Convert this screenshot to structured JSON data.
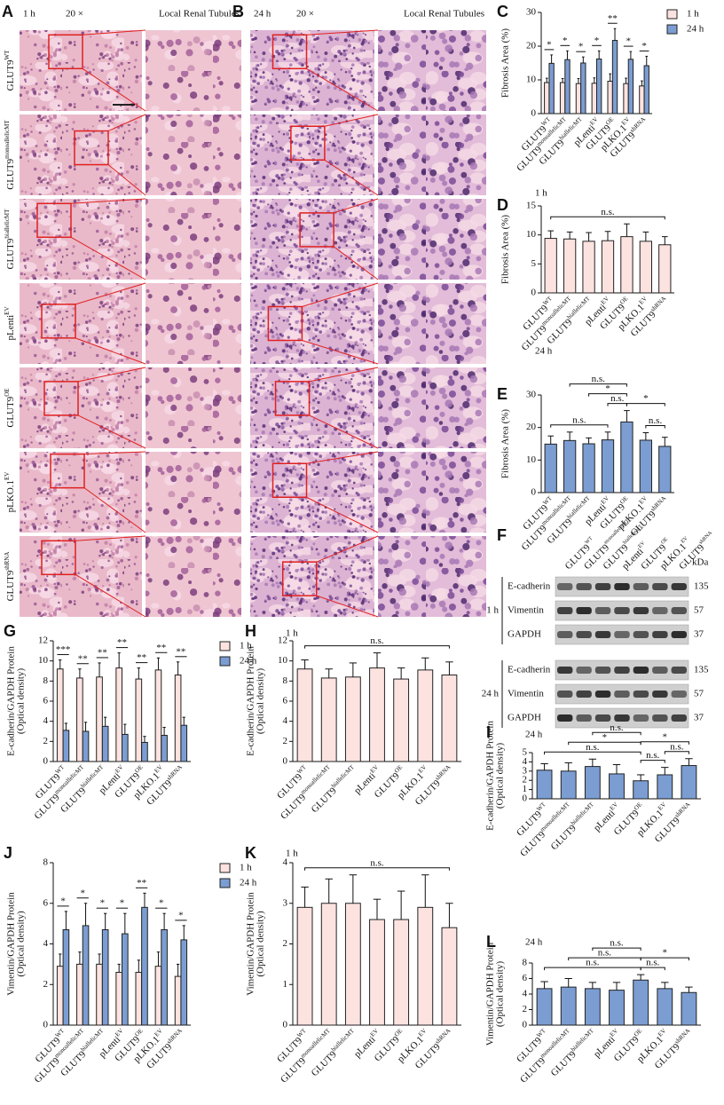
{
  "histology": {
    "panels": [
      {
        "panel": "A",
        "time": "1 h",
        "magnification": "20 ×",
        "zoom_label": "Local Renal Tubules"
      },
      {
        "panel": "B",
        "time": "24 h",
        "magnification": "20 ×",
        "zoom_label": "Local Renal Tubules"
      }
    ],
    "rows": [
      {
        "text": "GLUT9",
        "sup": "WT"
      },
      {
        "text": "GLUT9",
        "sup": "monoallelicMT"
      },
      {
        "text": "GLUT9",
        "sup": "biallelicMT"
      },
      {
        "text": "pLenti",
        "sup": "EV"
      },
      {
        "text": "GLUT9",
        "sup": "OE"
      },
      {
        "text": "pLKO.1",
        "sup": "EV"
      },
      {
        "text": "GLUT9",
        "sup": "shRNA"
      }
    ]
  },
  "western_blot": {
    "panel": "F",
    "lanes": [
      {
        "text": "GLUT9",
        "sup": "WT"
      },
      {
        "text": "GLUT9",
        "sup": "monoallelicMT"
      },
      {
        "text": "GLUT9",
        "sup": "biallelicMT"
      },
      {
        "text": "pLenti",
        "sup": "EV"
      },
      {
        "text": "GLUT9",
        "sup": "OE"
      },
      {
        "text": "pLKO.1",
        "sup": "EV"
      },
      {
        "text": "GLUT9",
        "sup": "shRNA"
      }
    ],
    "unit": "kDa",
    "blocks": [
      {
        "time": "1 h",
        "rows": [
          {
            "protein": "E-cadherin",
            "kda": 135
          },
          {
            "protein": "Vimentin",
            "kda": 57
          },
          {
            "protein": "GAPDH",
            "kda": 37
          }
        ]
      },
      {
        "time": "24 h",
        "rows": [
          {
            "protein": "E-cadherin",
            "kda": 135
          },
          {
            "protein": "Vimentin",
            "kda": 57
          },
          {
            "protein": "GAPDH",
            "kda": 37
          }
        ]
      }
    ]
  },
  "chart_data": [
    {
      "type": "bar",
      "panel": "C",
      "ylabel": [
        "Fibrosis Area (%)"
      ],
      "categories": [
        {
          "text": "GLUT9",
          "sup": "WT"
        },
        {
          "text": "GLUT9",
          "sup": "monoallelicMT"
        },
        {
          "text": "GLUT9",
          "sup": "biallelicMT"
        },
        {
          "text": "pLenti",
          "sup": "EV"
        },
        {
          "text": "GLUT9",
          "sup": "OE"
        },
        {
          "text": "pLKO.1",
          "sup": "EV"
        },
        {
          "text": "GLUT9",
          "sup": "shRNA"
        }
      ],
      "series": [
        {
          "name": "1 h",
          "color": "#fde3e0",
          "values": [
            9.2,
            9.2,
            8.9,
            9.0,
            9.6,
            8.9,
            8.2
          ],
          "errors": [
            1.3,
            1.2,
            1.5,
            1.6,
            2.2,
            1.6,
            1.5
          ]
        },
        {
          "name": "24 h",
          "color": "#7b9dd2",
          "values": [
            14.9,
            16.0,
            15.0,
            16.2,
            21.7,
            16.1,
            14.2
          ],
          "errors": [
            2.5,
            2.6,
            1.8,
            2.4,
            3.5,
            2.3,
            2.8
          ]
        }
      ],
      "significance": [
        "*",
        "*",
        "*",
        "*",
        "**",
        "*",
        "*"
      ],
      "ylim": [
        0,
        30
      ],
      "yticks": [
        0,
        10,
        20,
        30
      ]
    },
    {
      "type": "bar",
      "panel": "D",
      "title": "1 h",
      "ylabel": [
        "Fibrosis Area (%)"
      ],
      "categories": [
        {
          "text": "GLUT9",
          "sup": "WT"
        },
        {
          "text": "GLUT9",
          "sup": "monoallelicMT"
        },
        {
          "text": "GLUT9",
          "sup": "biallelicMT"
        },
        {
          "text": "pLenti",
          "sup": "EV"
        },
        {
          "text": "GLUT9",
          "sup": "OE"
        },
        {
          "text": "pLKO.1",
          "sup": "EV"
        },
        {
          "text": "GLUT9",
          "sup": "shRNA"
        }
      ],
      "series": [
        {
          "color": "#fde3e0",
          "values": [
            9.4,
            9.3,
            8.9,
            9.0,
            9.7,
            8.9,
            8.3
          ],
          "errors": [
            1.3,
            1.2,
            1.5,
            1.6,
            2.2,
            1.6,
            1.4
          ]
        }
      ],
      "brackets": [
        {
          "from": 0,
          "to": 6,
          "label": "n.s."
        }
      ],
      "ylim": [
        0,
        15
      ],
      "yticks": [
        0,
        5,
        10,
        15
      ]
    },
    {
      "type": "bar",
      "panel": "E",
      "title": "24 h",
      "ylabel": [
        "Fibrosis Area (%)"
      ],
      "categories": [
        {
          "text": "GLUT9",
          "sup": "WT"
        },
        {
          "text": "GLUT9",
          "sup": "monoallelicMT"
        },
        {
          "text": "GLUT9",
          "sup": "biallelicMT"
        },
        {
          "text": "pLenti",
          "sup": "EV"
        },
        {
          "text": "GLUT9",
          "sup": "OE"
        },
        {
          "text": "pLKO.1",
          "sup": "EV"
        },
        {
          "text": "GLUT9",
          "sup": "shRNA"
        }
      ],
      "series": [
        {
          "color": "#7b9dd2",
          "values": [
            14.9,
            16.0,
            15.0,
            16.2,
            21.7,
            16.1,
            14.2
          ],
          "errors": [
            2.5,
            2.6,
            1.8,
            2.4,
            3.5,
            2.3,
            2.8
          ]
        }
      ],
      "brackets": [
        {
          "from": 0,
          "to": 3,
          "label": "n.s."
        },
        {
          "from": 3,
          "to": 4,
          "label": "n.s."
        },
        {
          "from": 2,
          "to": 4,
          "label": "*"
        },
        {
          "from": 1,
          "to": 4,
          "label": "n.s."
        },
        {
          "from": 5,
          "to": 6,
          "label": "n.s."
        },
        {
          "from": 4,
          "to": 6,
          "label": "*"
        }
      ],
      "ylim": [
        0,
        30
      ],
      "yticks": [
        0,
        10,
        20,
        30
      ]
    },
    {
      "type": "bar",
      "panel": "G",
      "ylabel": [
        "E-cadherin/GAPDH Protein",
        "(Optical density)"
      ],
      "categories": [
        {
          "text": "GLUT9",
          "sup": "WT"
        },
        {
          "text": "GLUT9",
          "sup": "monoallelicMT"
        },
        {
          "text": "GLUT9",
          "sup": "biallelicMT"
        },
        {
          "text": "pLenti",
          "sup": "EV"
        },
        {
          "text": "GLUT9",
          "sup": "OE"
        },
        {
          "text": "pLKO.1",
          "sup": "EV"
        },
        {
          "text": "GLUT9",
          "sup": "shRNA"
        }
      ],
      "series": [
        {
          "name": "1 h",
          "color": "#fde3e0",
          "values": [
            9.2,
            8.3,
            8.4,
            9.3,
            8.2,
            9.1,
            8.6
          ],
          "errors": [
            0.9,
            0.9,
            1.4,
            1.5,
            1.1,
            1.2,
            1.3
          ]
        },
        {
          "name": "24 h",
          "color": "#7b9dd2",
          "values": [
            3.1,
            3.0,
            3.5,
            2.7,
            1.9,
            2.6,
            3.6
          ],
          "errors": [
            0.7,
            0.9,
            0.9,
            1.0,
            0.6,
            0.8,
            0.8
          ]
        }
      ],
      "significance": [
        "***",
        "**",
        "**",
        "**",
        "**",
        "**",
        "**"
      ],
      "ylim": [
        0,
        12
      ],
      "yticks": [
        0,
        2,
        4,
        6,
        8,
        10,
        12
      ]
    },
    {
      "type": "bar",
      "panel": "H",
      "title": "1 h",
      "ylabel": [
        "E-cadherin/GAPDH Protein",
        "(Optical density)"
      ],
      "categories": [
        {
          "text": "GLUT9",
          "sup": "WT"
        },
        {
          "text": "GLUT9",
          "sup": "monoallelicMT"
        },
        {
          "text": "GLUT9",
          "sup": "biallelicMT"
        },
        {
          "text": "pLenti",
          "sup": "EV"
        },
        {
          "text": "GLUT9",
          "sup": "OE"
        },
        {
          "text": "pLKO.1",
          "sup": "EV"
        },
        {
          "text": "GLUT9",
          "sup": "shRNA"
        }
      ],
      "series": [
        {
          "color": "#fde3e0",
          "values": [
            9.2,
            8.3,
            8.4,
            9.3,
            8.2,
            9.1,
            8.6
          ],
          "errors": [
            0.9,
            0.9,
            1.4,
            1.5,
            1.1,
            1.2,
            1.3
          ]
        }
      ],
      "brackets": [
        {
          "from": 0,
          "to": 6,
          "label": "n.s."
        }
      ],
      "ylim": [
        0,
        12
      ],
      "yticks": [
        0,
        2,
        4,
        6,
        8,
        10,
        12
      ]
    },
    {
      "type": "bar",
      "panel": "I",
      "title": "24 h",
      "ylabel": [
        "E-cadherin/GAPDH Protein",
        "(Optical density)"
      ],
      "categories": [
        {
          "text": "GLUT9",
          "sup": "WT"
        },
        {
          "text": "GLUT9",
          "sup": "monoallelicMT"
        },
        {
          "text": "GLUT9",
          "sup": "biallelicMT"
        },
        {
          "text": "pLenti",
          "sup": "EV"
        },
        {
          "text": "GLUT9",
          "sup": "OE"
        },
        {
          "text": "pLKO.1",
          "sup": "EV"
        },
        {
          "text": "GLUT9",
          "sup": "shRNA"
        }
      ],
      "series": [
        {
          "color": "#7b9dd2",
          "values": [
            3.1,
            3.0,
            3.5,
            2.7,
            1.95,
            2.6,
            3.6
          ],
          "errors": [
            0.7,
            0.9,
            0.8,
            1.0,
            0.65,
            0.8,
            0.75
          ]
        }
      ],
      "brackets": [
        {
          "from": 4,
          "to": 5,
          "label": "n.s."
        },
        {
          "from": 5,
          "to": 6,
          "label": "n.s."
        },
        {
          "from": 4,
          "to": 6,
          "label": "*"
        },
        {
          "from": 0,
          "to": 4,
          "label": "n.s."
        },
        {
          "from": 1,
          "to": 4,
          "label": "*"
        },
        {
          "from": 2,
          "to": 4,
          "label": "n.s."
        }
      ],
      "ylim": [
        0,
        5
      ],
      "yticks": [
        0,
        1,
        2,
        3,
        4,
        5
      ]
    },
    {
      "type": "bar",
      "panel": "J",
      "ylabel": [
        "Vimentin/GAPDH Protein",
        "(Optical density)"
      ],
      "categories": [
        {
          "text": "GLUT9",
          "sup": "WT"
        },
        {
          "text": "GLUT9",
          "sup": "monoallelicMT"
        },
        {
          "text": "GLUT9",
          "sup": "biallelicMT"
        },
        {
          "text": "pLenti",
          "sup": "EV"
        },
        {
          "text": "GLUT9",
          "sup": "OE"
        },
        {
          "text": "pLKO.1",
          "sup": "EV"
        },
        {
          "text": "GLUT9",
          "sup": "shRNA"
        }
      ],
      "series": [
        {
          "name": "1 h",
          "color": "#fde3e0",
          "values": [
            2.9,
            3.0,
            3.0,
            2.6,
            2.6,
            2.9,
            2.4
          ],
          "errors": [
            0.6,
            0.6,
            0.5,
            0.4,
            0.6,
            0.7,
            0.6
          ]
        },
        {
          "name": "24 h",
          "color": "#7b9dd2",
          "values": [
            4.7,
            4.9,
            4.7,
            4.5,
            5.8,
            4.7,
            4.2
          ],
          "errors": [
            0.9,
            1.1,
            0.8,
            1.0,
            0.7,
            0.8,
            0.7
          ]
        }
      ],
      "significance": [
        "*",
        "*",
        "*",
        "*",
        "**",
        "*",
        "*"
      ],
      "ylim": [
        0,
        8
      ],
      "yticks": [
        0,
        2,
        4,
        6,
        8
      ]
    },
    {
      "type": "bar",
      "panel": "K",
      "title": "1 h",
      "ylabel": [
        "Vimentin/GAPDH Protein",
        "(Optical density)"
      ],
      "categories": [
        {
          "text": "GLUT9",
          "sup": "WT"
        },
        {
          "text": "GLUT9",
          "sup": "monoallelicMT"
        },
        {
          "text": "GLUT9",
          "sup": "biallelicMT"
        },
        {
          "text": "pLenti",
          "sup": "EV"
        },
        {
          "text": "GLUT9",
          "sup": "OE"
        },
        {
          "text": "pLKO.1",
          "sup": "EV"
        },
        {
          "text": "GLUT9",
          "sup": "shRNA"
        }
      ],
      "series": [
        {
          "color": "#fde3e0",
          "values": [
            2.9,
            3.0,
            3.0,
            2.6,
            2.6,
            2.9,
            2.4
          ],
          "errors": [
            0.5,
            0.6,
            0.7,
            0.5,
            0.7,
            0.8,
            0.6
          ]
        }
      ],
      "brackets": [
        {
          "from": 0,
          "to": 6,
          "label": "n.s."
        }
      ],
      "ylim": [
        0,
        4
      ],
      "yticks": [
        0,
        1,
        2,
        3,
        4
      ]
    },
    {
      "type": "bar",
      "panel": "L",
      "title": "24 h",
      "ylabel": [
        "Vimentin/GAPDH Protein",
        "(Optical density)"
      ],
      "categories": [
        {
          "text": "GLUT9",
          "sup": "WT"
        },
        {
          "text": "GLUT9",
          "sup": "monoallelicMT"
        },
        {
          "text": "GLUT9",
          "sup": "biallelicMT"
        },
        {
          "text": "pLenti",
          "sup": "EV"
        },
        {
          "text": "GLUT9",
          "sup": "OE"
        },
        {
          "text": "pLKO.1",
          "sup": "EV"
        },
        {
          "text": "GLUT9",
          "sup": "shRNA"
        }
      ],
      "series": [
        {
          "color": "#7b9dd2",
          "values": [
            4.7,
            4.9,
            4.7,
            4.5,
            5.8,
            4.7,
            4.2
          ],
          "errors": [
            0.9,
            1.1,
            0.8,
            1.0,
            0.7,
            0.8,
            0.7
          ]
        }
      ],
      "brackets": [
        {
          "from": 4,
          "to": 5,
          "label": "n.s."
        },
        {
          "from": 4,
          "to": 6,
          "label": "*"
        },
        {
          "from": 0,
          "to": 4,
          "label": "n.s."
        },
        {
          "from": 1,
          "to": 4,
          "label": "n.s."
        },
        {
          "from": 2,
          "to": 4,
          "label": "n.s."
        }
      ],
      "ylim": [
        0,
        8
      ],
      "yticks": [
        0,
        2,
        4,
        6,
        8
      ]
    }
  ]
}
